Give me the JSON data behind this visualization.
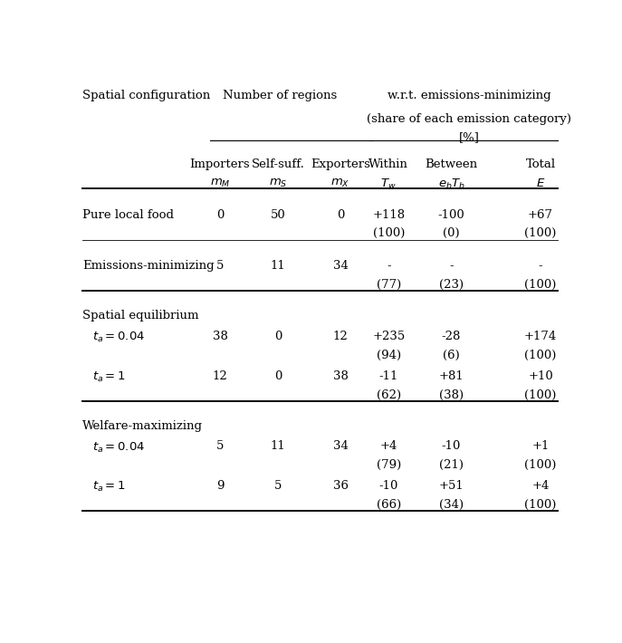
{
  "background_color": "#ffffff",
  "text_color": "#000000",
  "font_size": 9.5,
  "col0": 0.01,
  "col1": 0.295,
  "col2": 0.415,
  "col3": 0.545,
  "col4": 0.645,
  "col5": 0.775,
  "col6": 0.96,
  "sections": [
    {
      "header": "Pure local food",
      "indent": false,
      "rows": [
        {
          "label": "",
          "mM": "0",
          "mS": "50",
          "mX": "0",
          "Tw": "+118",
          "ebTb": "-100",
          "E": "+67",
          "Tw2": "(100)",
          "ebTb2": "(0)",
          "E2": "(100)"
        }
      ]
    },
    {
      "header": "Emissions-minimizing",
      "indent": false,
      "rows": [
        {
          "label": "",
          "mM": "5",
          "mS": "11",
          "mX": "34",
          "Tw": "-",
          "ebTb": "-",
          "E": "-",
          "Tw2": "(77)",
          "ebTb2": "(23)",
          "E2": "(100)"
        }
      ]
    },
    {
      "header": "Spatial equilibrium",
      "indent": false,
      "rows": [
        {
          "label": "$t_a = 0.04$",
          "mM": "38",
          "mS": "0",
          "mX": "12",
          "Tw": "+235",
          "ebTb": "-28",
          "E": "+174",
          "Tw2": "(94)",
          "ebTb2": "(6)",
          "E2": "(100)"
        },
        {
          "label": "$t_a = 1$",
          "mM": "12",
          "mS": "0",
          "mX": "38",
          "Tw": "-11",
          "ebTb": "+81",
          "E": "+10",
          "Tw2": "(62)",
          "ebTb2": "(38)",
          "E2": "(100)"
        }
      ]
    },
    {
      "header": "Welfare-maximizing",
      "indent": false,
      "rows": [
        {
          "label": "$t_a = 0.04$",
          "mM": "5",
          "mS": "11",
          "mX": "34",
          "Tw": "+4",
          "ebTb": "-10",
          "E": "+1",
          "Tw2": "(79)",
          "ebTb2": "(21)",
          "E2": "(100)"
        },
        {
          "label": "$t_a = 1$",
          "mM": "9",
          "mS": "5",
          "mX": "36",
          "Tw": "-10",
          "ebTb": "+51",
          "E": "+4",
          "Tw2": "(66)",
          "ebTb2": "(34)",
          "E2": "(100)"
        }
      ]
    }
  ]
}
